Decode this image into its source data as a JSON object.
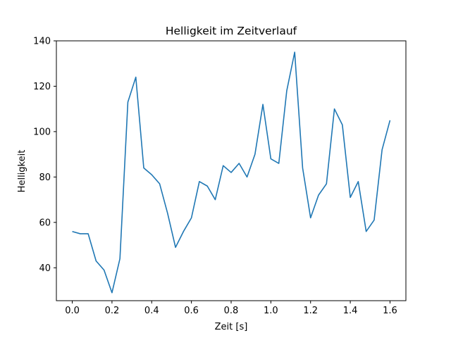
{
  "chart_data": {
    "type": "line",
    "title": "Helligkeit im Zeitverlauf",
    "xlabel": "Zeit [s]",
    "ylabel": "Helligkeit",
    "xlim": [
      -0.08,
      1.68
    ],
    "ylim": [
      25.5,
      140
    ],
    "x_ticks": [
      0.0,
      0.2,
      0.4,
      0.6,
      0.8,
      1.0,
      1.2,
      1.4,
      1.6
    ],
    "x_tick_labels": [
      "0.0",
      "0.2",
      "0.4",
      "0.6",
      "0.8",
      "1.0",
      "1.2",
      "1.4",
      "1.6"
    ],
    "y_ticks": [
      40,
      60,
      80,
      100,
      120,
      140
    ],
    "y_tick_labels": [
      "40",
      "60",
      "80",
      "100",
      "120",
      "140"
    ],
    "grid": false,
    "legend": "none",
    "series": [
      {
        "color": "#1f77b4",
        "x": [
          0.0,
          0.04,
          0.08,
          0.12,
          0.16,
          0.2,
          0.24,
          0.28,
          0.32,
          0.36,
          0.4,
          0.44,
          0.48,
          0.52,
          0.56,
          0.6,
          0.64,
          0.68,
          0.72,
          0.76,
          0.8,
          0.84,
          0.88,
          0.92,
          0.96,
          1.0,
          1.04,
          1.08,
          1.12,
          1.16,
          1.2,
          1.24,
          1.28,
          1.32,
          1.36,
          1.4,
          1.44,
          1.48,
          1.52,
          1.56,
          1.6
        ],
        "y": [
          56,
          55,
          55,
          43,
          39,
          29,
          44,
          113,
          124,
          84,
          81,
          77,
          64,
          49,
          56,
          62,
          78,
          76,
          70,
          85,
          82,
          86,
          80,
          90,
          112,
          88,
          86,
          118,
          135,
          84,
          62,
          72,
          77,
          110,
          103,
          71,
          78,
          56,
          61,
          92,
          105
        ]
      }
    ]
  }
}
